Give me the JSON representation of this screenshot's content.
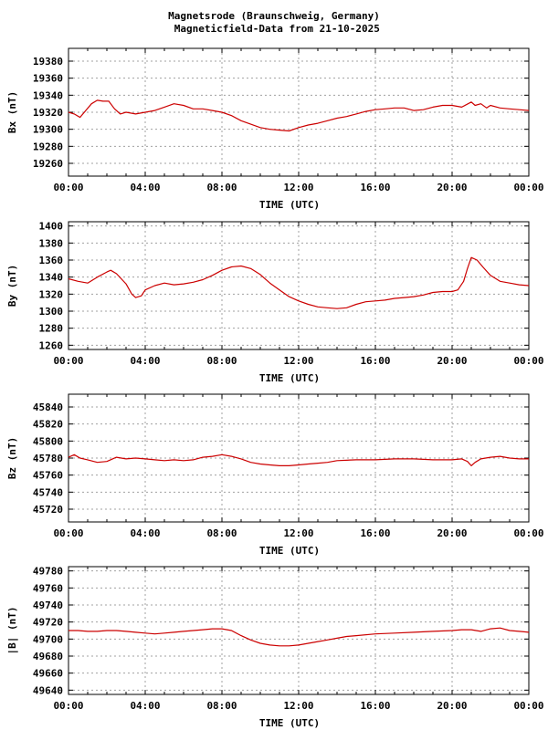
{
  "title": {
    "line1": "Magnetsrode (Braunschweig, Germany)",
    "line2": " Magneticfield-Data from 21-10-2025"
  },
  "series_color": "#cc0000",
  "grid_color": "#a0a0a0",
  "chart_data": [
    {
      "type": "line",
      "ylabel": "Bx (nT)",
      "xlabel": "TIME (UTC)",
      "x_ticks": [
        "00:00",
        "04:00",
        "08:00",
        "12:00",
        "16:00",
        "20:00",
        "00:00"
      ],
      "y_ticks": [
        19260,
        19280,
        19300,
        19320,
        19340,
        19360,
        19380
      ],
      "ylim": [
        19245,
        19395
      ],
      "xlim": [
        0,
        24
      ],
      "grid": true,
      "x": [
        0,
        0.3,
        0.6,
        0.9,
        1.2,
        1.5,
        1.8,
        2.1,
        2.4,
        2.7,
        3.0,
        3.5,
        4.0,
        4.5,
        5.0,
        5.5,
        6.0,
        6.5,
        7.0,
        7.5,
        8.0,
        8.5,
        9.0,
        9.5,
        10.0,
        10.5,
        11.0,
        11.5,
        12.0,
        12.5,
        13.0,
        13.5,
        14.0,
        14.5,
        15.0,
        15.5,
        16.0,
        16.5,
        17.0,
        17.5,
        18.0,
        18.5,
        19.0,
        19.5,
        20.0,
        20.5,
        21.0,
        21.2,
        21.5,
        21.8,
        22.0,
        22.5,
        23.0,
        23.5,
        24.0
      ],
      "values": [
        19320,
        19318,
        19314,
        19322,
        19330,
        19334,
        19333,
        19333,
        19324,
        19318,
        19320,
        19318,
        19320,
        19322,
        19326,
        19330,
        19328,
        19324,
        19324,
        19322,
        19320,
        19316,
        19310,
        19306,
        19302,
        19300,
        19299,
        19298,
        19302,
        19305,
        19307,
        19310,
        19313,
        19315,
        19318,
        19321,
        19323,
        19324,
        19325,
        19325,
        19322,
        19323,
        19326,
        19328,
        19328,
        19326,
        19332,
        19328,
        19330,
        19325,
        19328,
        19325,
        19324,
        19323,
        19322
      ]
    },
    {
      "type": "line",
      "ylabel": "By (nT)",
      "xlabel": "TIME (UTC)",
      "x_ticks": [
        "00:00",
        "04:00",
        "08:00",
        "12:00",
        "16:00",
        "20:00",
        "00:00"
      ],
      "y_ticks": [
        1260,
        1280,
        1300,
        1320,
        1340,
        1360,
        1380,
        1400
      ],
      "ylim": [
        1255,
        1405
      ],
      "xlim": [
        0,
        24
      ],
      "grid": true,
      "x": [
        0,
        0.5,
        1.0,
        1.5,
        2.0,
        2.2,
        2.5,
        3.0,
        3.3,
        3.5,
        3.8,
        4.0,
        4.5,
        5.0,
        5.5,
        6.0,
        6.5,
        7.0,
        7.5,
        8.0,
        8.5,
        9.0,
        9.5,
        10.0,
        10.5,
        11.0,
        11.5,
        12.0,
        12.5,
        13.0,
        13.5,
        14.0,
        14.5,
        15.0,
        15.5,
        16.0,
        16.5,
        17.0,
        17.5,
        18.0,
        18.5,
        19.0,
        19.5,
        20.0,
        20.3,
        20.6,
        20.8,
        21.0,
        21.3,
        21.6,
        22.0,
        22.5,
        23.0,
        23.5,
        24.0
      ],
      "values": [
        1338,
        1335,
        1333,
        1340,
        1346,
        1348,
        1344,
        1332,
        1320,
        1316,
        1318,
        1325,
        1330,
        1333,
        1331,
        1332,
        1334,
        1337,
        1342,
        1348,
        1352,
        1353,
        1350,
        1343,
        1333,
        1325,
        1317,
        1312,
        1308,
        1305,
        1304,
        1303,
        1304,
        1308,
        1311,
        1312,
        1313,
        1315,
        1316,
        1317,
        1319,
        1322,
        1323,
        1323,
        1325,
        1335,
        1350,
        1363,
        1360,
        1352,
        1342,
        1335,
        1333,
        1331,
        1330
      ]
    },
    {
      "type": "line",
      "ylabel": "Bz (nT)",
      "xlabel": "TIME (UTC)",
      "x_ticks": [
        "00:00",
        "04:00",
        "08:00",
        "12:00",
        "16:00",
        "20:00",
        "00:00"
      ],
      "y_ticks": [
        45720,
        45740,
        45760,
        45780,
        45800,
        45820,
        45840
      ],
      "ylim": [
        45705,
        45855
      ],
      "xlim": [
        0,
        24
      ],
      "grid": true,
      "x": [
        0,
        0.3,
        0.6,
        1.0,
        1.5,
        2.0,
        2.5,
        3.0,
        3.5,
        4.0,
        4.5,
        5.0,
        5.5,
        6.0,
        6.5,
        7.0,
        7.5,
        8.0,
        8.5,
        9.0,
        9.5,
        10.0,
        10.5,
        11.0,
        11.5,
        12.0,
        12.5,
        13.0,
        13.5,
        14.0,
        15.0,
        16.0,
        17.0,
        18.0,
        19.0,
        20.0,
        20.5,
        20.8,
        21.0,
        21.2,
        21.5,
        22.0,
        22.5,
        23.0,
        23.5,
        24.0
      ],
      "values": [
        45781,
        45784,
        45780,
        45778,
        45775,
        45776,
        45781,
        45779,
        45780,
        45779,
        45778,
        45777,
        45778,
        45777,
        45778,
        45781,
        45782,
        45784,
        45782,
        45779,
        45775,
        45773,
        45772,
        45771,
        45771,
        45772,
        45773,
        45774,
        45775,
        45777,
        45778,
        45778,
        45779,
        45779,
        45778,
        45778,
        45779,
        45776,
        45771,
        45775,
        45779,
        45781,
        45782,
        45780,
        45779,
        45779
      ]
    },
    {
      "type": "line",
      "ylabel": "|B| (nT)",
      "xlabel": "TIME (UTC)",
      "x_ticks": [
        "00:00",
        "04:00",
        "08:00",
        "12:00",
        "16:00",
        "20:00",
        "00:00"
      ],
      "y_ticks": [
        49640,
        49660,
        49680,
        49700,
        49720,
        49740,
        49760,
        49780
      ],
      "ylim": [
        49635,
        49785
      ],
      "xlim": [
        0,
        24
      ],
      "grid": true,
      "x": [
        0,
        0.5,
        1.0,
        1.5,
        2.0,
        2.5,
        3.0,
        3.5,
        4.0,
        4.5,
        5.0,
        5.5,
        6.0,
        6.5,
        7.0,
        7.5,
        8.0,
        8.5,
        9.0,
        9.5,
        10.0,
        10.5,
        11.0,
        11.5,
        12.0,
        12.5,
        13.0,
        13.5,
        14.0,
        14.5,
        15.0,
        16.0,
        17.0,
        18.0,
        19.0,
        20.0,
        20.5,
        21.0,
        21.5,
        22.0,
        22.5,
        23.0,
        23.5,
        24.0
      ],
      "values": [
        49710,
        49710,
        49709,
        49709,
        49710,
        49710,
        49709,
        49708,
        49707,
        49706,
        49707,
        49708,
        49709,
        49710,
        49711,
        49712,
        49712,
        49710,
        49704,
        49699,
        49695,
        49693,
        49692,
        49692,
        49693,
        49695,
        49697,
        49699,
        49701,
        49703,
        49704,
        49706,
        49707,
        49708,
        49709,
        49710,
        49711,
        49711,
        49709,
        49712,
        49713,
        49710,
        49709,
        49708
      ]
    }
  ]
}
